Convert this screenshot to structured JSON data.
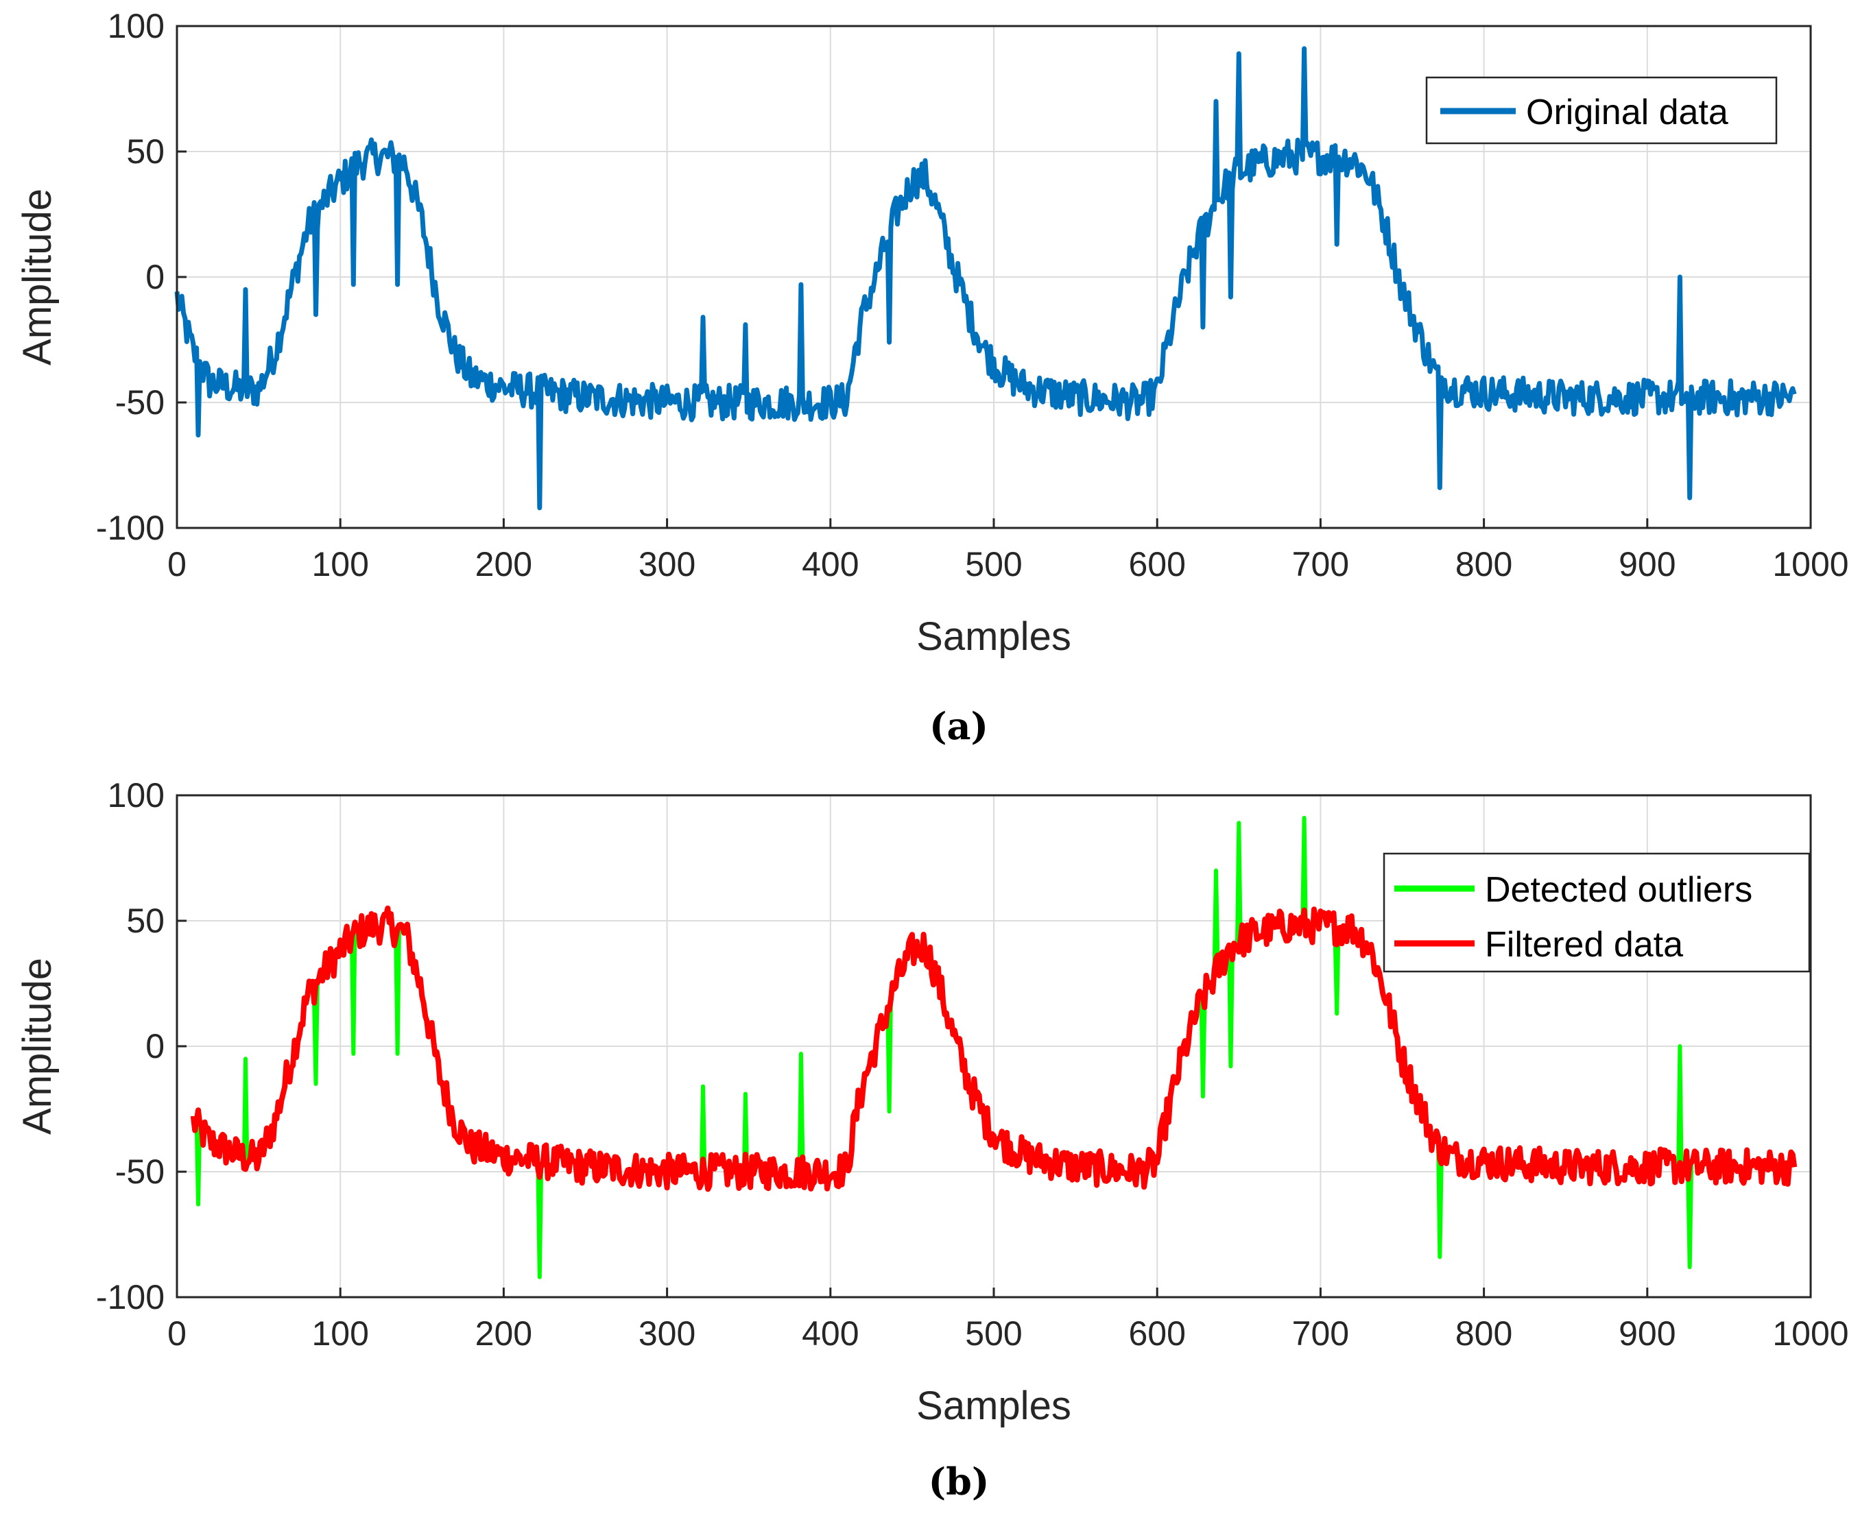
{
  "chart_data": [
    {
      "type": "line",
      "panel": "a",
      "caption": "(a)",
      "xlabel": "Samples",
      "ylabel": "Amplitude",
      "xlim": [
        0,
        1000
      ],
      "ylim": [
        -100,
        100
      ],
      "xticks": [
        "0",
        "100",
        "200",
        "300",
        "400",
        "500",
        "600",
        "700",
        "800",
        "900",
        "1000"
      ],
      "yticks": [
        "-100",
        "-50",
        "0",
        "50",
        "100"
      ],
      "grid": true,
      "legend_position": "top-right",
      "series": [
        {
          "name": "Original data",
          "color": "#0072BD",
          "shape": [
            [
              0,
              -8
            ],
            [
              10,
              -30
            ],
            [
              20,
              -42
            ],
            [
              40,
              -45
            ],
            [
              50,
              -45
            ],
            [
              60,
              -30
            ],
            [
              70,
              -5
            ],
            [
              80,
              20
            ],
            [
              90,
              30
            ],
            [
              100,
              38
            ],
            [
              110,
              45
            ],
            [
              120,
              48
            ],
            [
              130,
              48
            ],
            [
              140,
              45
            ],
            [
              150,
              22
            ],
            [
              160,
              -10
            ],
            [
              170,
              -30
            ],
            [
              180,
              -40
            ],
            [
              200,
              -44
            ],
            [
              250,
              -48
            ],
            [
              300,
              -50
            ],
            [
              350,
              -50
            ],
            [
              400,
              -50
            ],
            [
              410,
              -49
            ],
            [
              415,
              -30
            ],
            [
              420,
              -15
            ],
            [
              430,
              5
            ],
            [
              440,
              25
            ],
            [
              450,
              38
            ],
            [
              458,
              40
            ],
            [
              465,
              28
            ],
            [
              475,
              5
            ],
            [
              485,
              -15
            ],
            [
              495,
              -30
            ],
            [
              505,
              -38
            ],
            [
              520,
              -44
            ],
            [
              550,
              -48
            ],
            [
              590,
              -50
            ],
            [
              600,
              -46
            ],
            [
              605,
              -30
            ],
            [
              615,
              -5
            ],
            [
              625,
              15
            ],
            [
              635,
              28
            ],
            [
              645,
              40
            ],
            [
              660,
              45
            ],
            [
              680,
              48
            ],
            [
              700,
              48
            ],
            [
              720,
              47
            ],
            [
              730,
              40
            ],
            [
              740,
              20
            ],
            [
              750,
              -5
            ],
            [
              760,
              -22
            ],
            [
              770,
              -38
            ],
            [
              780,
              -44
            ],
            [
              800,
              -46
            ],
            [
              850,
              -48
            ],
            [
              900,
              -48
            ],
            [
              950,
              -48
            ],
            [
              990,
              -48
            ]
          ],
          "spikes": [
            [
              13,
              -63
            ],
            [
              42,
              -5
            ],
            [
              85,
              -15
            ],
            [
              108,
              -3
            ],
            [
              115,
              45
            ],
            [
              135,
              -3
            ],
            [
              222,
              -92
            ],
            [
              322,
              -16
            ],
            [
              348,
              -19
            ],
            [
              382,
              -3
            ],
            [
              436,
              -26
            ],
            [
              547,
              -43
            ],
            [
              628,
              -20
            ],
            [
              636,
              70
            ],
            [
              645,
              -8
            ],
            [
              650,
              89
            ],
            [
              690,
              91
            ],
            [
              710,
              13
            ],
            [
              773,
              -84
            ],
            [
              920,
              0
            ],
            [
              926,
              -88
            ],
            [
              955,
              -55
            ]
          ]
        }
      ]
    },
    {
      "type": "line",
      "panel": "b",
      "caption": "(b)",
      "xlabel": "Samples",
      "ylabel": "Amplitude",
      "xlim": [
        0,
        1000
      ],
      "ylim": [
        -100,
        100
      ],
      "xticks": [
        "0",
        "100",
        "200",
        "300",
        "400",
        "500",
        "600",
        "700",
        "800",
        "900",
        "1000"
      ],
      "yticks": [
        "-100",
        "-50",
        "0",
        "50",
        "100"
      ],
      "grid": true,
      "legend_position": "top-right",
      "series": [
        {
          "name": "Detected outliers",
          "color": "#00FF00",
          "spikes": [
            [
              13,
              -63
            ],
            [
              42,
              -5
            ],
            [
              85,
              -15
            ],
            [
              108,
              -3
            ],
            [
              115,
              45
            ],
            [
              135,
              -3
            ],
            [
              222,
              -92
            ],
            [
              322,
              -16
            ],
            [
              348,
              -19
            ],
            [
              382,
              -3
            ],
            [
              436,
              -26
            ],
            [
              628,
              -20
            ],
            [
              636,
              70
            ],
            [
              645,
              -8
            ],
            [
              650,
              89
            ],
            [
              690,
              91
            ],
            [
              710,
              13
            ],
            [
              773,
              -84
            ],
            [
              920,
              0
            ],
            [
              926,
              -88
            ]
          ]
        },
        {
          "name": "Filtered data",
          "color": "#FF0000",
          "shape": [
            [
              10,
              -30
            ],
            [
              20,
              -38
            ],
            [
              40,
              -44
            ],
            [
              50,
              -45
            ],
            [
              60,
              -30
            ],
            [
              70,
              -5
            ],
            [
              80,
              20
            ],
            [
              90,
              30
            ],
            [
              100,
              38
            ],
            [
              110,
              45
            ],
            [
              120,
              48
            ],
            [
              130,
              48
            ],
            [
              140,
              45
            ],
            [
              150,
              22
            ],
            [
              160,
              -10
            ],
            [
              170,
              -30
            ],
            [
              180,
              -40
            ],
            [
              200,
              -44
            ],
            [
              250,
              -48
            ],
            [
              300,
              -50
            ],
            [
              350,
              -50
            ],
            [
              400,
              -50
            ],
            [
              410,
              -49
            ],
            [
              415,
              -30
            ],
            [
              420,
              -15
            ],
            [
              430,
              5
            ],
            [
              440,
              25
            ],
            [
              450,
              38
            ],
            [
              458,
              40
            ],
            [
              465,
              28
            ],
            [
              475,
              5
            ],
            [
              485,
              -15
            ],
            [
              495,
              -30
            ],
            [
              505,
              -38
            ],
            [
              520,
              -44
            ],
            [
              550,
              -48
            ],
            [
              590,
              -50
            ],
            [
              600,
              -46
            ],
            [
              605,
              -30
            ],
            [
              615,
              -5
            ],
            [
              625,
              15
            ],
            [
              635,
              28
            ],
            [
              645,
              40
            ],
            [
              660,
              45
            ],
            [
              680,
              48
            ],
            [
              700,
              48
            ],
            [
              720,
              47
            ],
            [
              730,
              40
            ],
            [
              740,
              20
            ],
            [
              750,
              -5
            ],
            [
              760,
              -22
            ],
            [
              770,
              -38
            ],
            [
              780,
              -44
            ],
            [
              800,
              -46
            ],
            [
              850,
              -48
            ],
            [
              900,
              -48
            ],
            [
              950,
              -48
            ],
            [
              990,
              -48
            ]
          ]
        }
      ]
    }
  ]
}
